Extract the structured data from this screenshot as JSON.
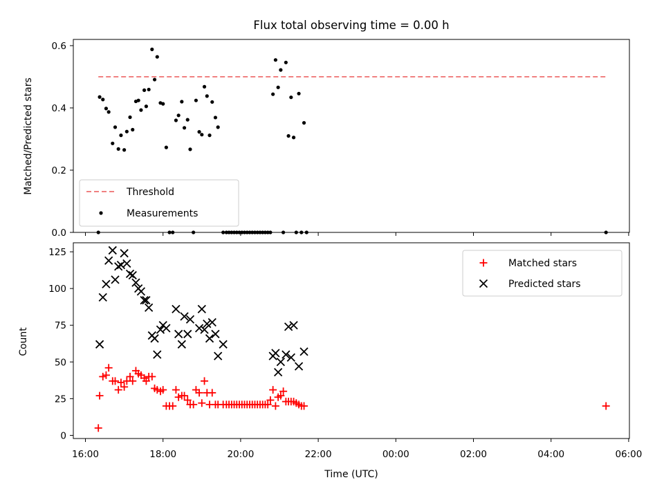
{
  "chart_data": [
    {
      "type": "scatter",
      "title": "Flux total observing time = 0.00 h",
      "ylabel": "Matched/Predicted stars",
      "ylim": [
        0,
        0.62
      ],
      "yticks": [
        0.0,
        0.2,
        0.4,
        0.6
      ],
      "ytick_labels": [
        "0.0",
        "0.2",
        "0.4",
        "0.6"
      ],
      "xlim": [
        "16:00",
        "06:00"
      ],
      "grid": false,
      "legend_position": "bottom-left",
      "threshold": {
        "name": "Threshold",
        "value": 0.5,
        "color": "#f08080",
        "x_start": "16:20",
        "x_end": "05:25"
      },
      "series": [
        {
          "name": "Measurements",
          "color": "#000000",
          "marker": "dot",
          "points": [
            [
              "16:20",
              0.0
            ],
            [
              "16:22",
              0.435
            ],
            [
              "16:27",
              0.427
            ],
            [
              "16:32",
              0.398
            ],
            [
              "16:36",
              0.387
            ],
            [
              "16:42",
              0.286
            ],
            [
              "16:46",
              0.338
            ],
            [
              "16:51",
              0.268
            ],
            [
              "16:55",
              0.312
            ],
            [
              "17:00",
              0.265
            ],
            [
              "17:04",
              0.324
            ],
            [
              "17:09",
              0.37
            ],
            [
              "17:13",
              0.33
            ],
            [
              "17:18",
              0.421
            ],
            [
              "17:22",
              0.424
            ],
            [
              "17:26",
              0.393
            ],
            [
              "17:31",
              0.457
            ],
            [
              "17:34",
              0.405
            ],
            [
              "17:38",
              0.459
            ],
            [
              "17:43",
              0.588
            ],
            [
              "17:47",
              0.491
            ],
            [
              "17:51",
              0.564
            ],
            [
              "17:56",
              0.416
            ],
            [
              "18:00",
              0.413
            ],
            [
              "18:05",
              0.273
            ],
            [
              "18:10",
              0.0
            ],
            [
              "18:15",
              0.0
            ],
            [
              "18:20",
              0.36
            ],
            [
              "18:24",
              0.376
            ],
            [
              "18:29",
              0.42
            ],
            [
              "18:33",
              0.336
            ],
            [
              "18:38",
              0.362
            ],
            [
              "18:42",
              0.267
            ],
            [
              "18:47",
              0.0
            ],
            [
              "18:51",
              0.424
            ],
            [
              "18:56",
              0.323
            ],
            [
              "19:00",
              0.314
            ],
            [
              "19:04",
              0.468
            ],
            [
              "19:08",
              0.438
            ],
            [
              "19:12",
              0.312
            ],
            [
              "19:16",
              0.419
            ],
            [
              "19:21",
              0.369
            ],
            [
              "19:25",
              0.338
            ],
            [
              "19:33",
              0.0
            ],
            [
              "19:38",
              0.0
            ],
            [
              "19:42",
              0.0
            ],
            [
              "19:46",
              0.0
            ],
            [
              "19:50",
              0.0
            ],
            [
              "19:54",
              0.0
            ],
            [
              "19:58",
              0.0
            ],
            [
              "20:02",
              0.0
            ],
            [
              "20:06",
              0.0
            ],
            [
              "20:10",
              0.0
            ],
            [
              "20:14",
              0.0
            ],
            [
              "20:18",
              0.0
            ],
            [
              "20:22",
              0.0
            ],
            [
              "20:26",
              0.0
            ],
            [
              "20:30",
              0.0
            ],
            [
              "20:34",
              0.0
            ],
            [
              "20:38",
              0.0
            ],
            [
              "20:42",
              0.0
            ],
            [
              "20:46",
              0.0
            ],
            [
              "20:50",
              0.444
            ],
            [
              "20:54",
              0.554
            ],
            [
              "20:58",
              0.466
            ],
            [
              "21:02",
              0.522
            ],
            [
              "21:06",
              0.0
            ],
            [
              "21:10",
              0.546
            ],
            [
              "21:14",
              0.31
            ],
            [
              "21:18",
              0.434
            ],
            [
              "21:22",
              0.305
            ],
            [
              "21:26",
              0.0
            ],
            [
              "21:30",
              0.446
            ],
            [
              "21:34",
              0.0
            ],
            [
              "21:38",
              0.352
            ],
            [
              "21:42",
              0.0
            ],
            [
              "05:25",
              0.0
            ]
          ]
        }
      ]
    },
    {
      "type": "scatter",
      "xlabel": "Time (UTC)",
      "ylabel": "Count",
      "ylim": [
        0,
        130
      ],
      "yticks": [
        0,
        25,
        50,
        75,
        100,
        125
      ],
      "ytick_labels": [
        "0",
        "25",
        "50",
        "75",
        "100",
        "125"
      ],
      "xlim": [
        "16:00",
        "06:00"
      ],
      "xtick_labels": [
        "16:00",
        "18:00",
        "20:00",
        "22:00",
        "00:00",
        "02:00",
        "04:00",
        "06:00"
      ],
      "grid": false,
      "legend_position": "top-right",
      "series": [
        {
          "name": "Matched stars",
          "color": "#ff0000",
          "marker": "plus",
          "points": [
            [
              "16:20",
              5
            ],
            [
              "16:22",
              27
            ],
            [
              "16:27",
              40
            ],
            [
              "16:32",
              41
            ],
            [
              "16:36",
              46
            ],
            [
              "16:42",
              37
            ],
            [
              "16:46",
              37
            ],
            [
              "16:51",
              31
            ],
            [
              "16:55",
              36
            ],
            [
              "17:00",
              33
            ],
            [
              "17:04",
              37
            ],
            [
              "17:09",
              40
            ],
            [
              "17:13",
              37
            ],
            [
              "17:18",
              44
            ],
            [
              "17:22",
              42
            ],
            [
              "17:26",
              41
            ],
            [
              "17:31",
              39
            ],
            [
              "17:34",
              37
            ],
            [
              "17:38",
              40
            ],
            [
              "17:43",
              40
            ],
            [
              "17:47",
              32
            ],
            [
              "17:51",
              31
            ],
            [
              "17:56",
              30
            ],
            [
              "18:00",
              31
            ],
            [
              "18:05",
              20
            ],
            [
              "18:10",
              20
            ],
            [
              "18:15",
              20
            ],
            [
              "18:20",
              31
            ],
            [
              "18:24",
              26
            ],
            [
              "18:29",
              27
            ],
            [
              "18:33",
              27
            ],
            [
              "18:38",
              24
            ],
            [
              "18:42",
              21
            ],
            [
              "18:47",
              21
            ],
            [
              "18:51",
              31
            ],
            [
              "18:56",
              29
            ],
            [
              "19:00",
              22
            ],
            [
              "19:04",
              37
            ],
            [
              "19:08",
              29
            ],
            [
              "19:12",
              21
            ],
            [
              "19:16",
              29
            ],
            [
              "19:21",
              21
            ],
            [
              "19:25",
              21
            ],
            [
              "19:33",
              21
            ],
            [
              "19:38",
              21
            ],
            [
              "19:42",
              21
            ],
            [
              "19:46",
              21
            ],
            [
              "19:50",
              21
            ],
            [
              "19:54",
              21
            ],
            [
              "19:58",
              21
            ],
            [
              "20:02",
              21
            ],
            [
              "20:06",
              21
            ],
            [
              "20:10",
              21
            ],
            [
              "20:14",
              21
            ],
            [
              "20:18",
              21
            ],
            [
              "20:22",
              21
            ],
            [
              "20:26",
              21
            ],
            [
              "20:30",
              21
            ],
            [
              "20:34",
              21
            ],
            [
              "20:38",
              21
            ],
            [
              "20:42",
              21
            ],
            [
              "20:46",
              24
            ],
            [
              "20:50",
              31
            ],
            [
              "20:54",
              20
            ],
            [
              "20:58",
              26
            ],
            [
              "21:02",
              27
            ],
            [
              "21:06",
              30
            ],
            [
              "21:10",
              23
            ],
            [
              "21:14",
              23
            ],
            [
              "21:18",
              23
            ],
            [
              "21:22",
              23
            ],
            [
              "21:26",
              22
            ],
            [
              "21:30",
              21
            ],
            [
              "21:34",
              20
            ],
            [
              "21:38",
              20
            ],
            [
              "05:25",
              20
            ]
          ]
        },
        {
          "name": "Predicted stars",
          "color": "#000000",
          "marker": "x",
          "points": [
            [
              "16:22",
              62
            ],
            [
              "16:27",
              94
            ],
            [
              "16:32",
              103
            ],
            [
              "16:36",
              119
            ],
            [
              "16:42",
              126
            ],
            [
              "16:46",
              106
            ],
            [
              "16:51",
              115
            ],
            [
              "16:55",
              116
            ],
            [
              "17:00",
              124
            ],
            [
              "17:04",
              117
            ],
            [
              "17:09",
              110
            ],
            [
              "17:13",
              109
            ],
            [
              "17:18",
              104
            ],
            [
              "17:22",
              100
            ],
            [
              "17:26",
              98
            ],
            [
              "17:31",
              92
            ],
            [
              "17:34",
              92
            ],
            [
              "17:38",
              87
            ],
            [
              "17:43",
              68
            ],
            [
              "17:47",
              66
            ],
            [
              "17:51",
              55
            ],
            [
              "17:56",
              72
            ],
            [
              "18:00",
              75
            ],
            [
              "18:05",
              73
            ],
            [
              "18:20",
              86
            ],
            [
              "18:24",
              69
            ],
            [
              "18:29",
              62
            ],
            [
              "18:33",
              81
            ],
            [
              "18:38",
              69
            ],
            [
              "18:42",
              79
            ],
            [
              "18:56",
              73
            ],
            [
              "19:00",
              86
            ],
            [
              "19:04",
              72
            ],
            [
              "19:08",
              76
            ],
            [
              "19:12",
              66
            ],
            [
              "19:16",
              77
            ],
            [
              "19:21",
              69
            ],
            [
              "19:25",
              54
            ],
            [
              "19:33",
              62
            ],
            [
              "20:50",
              54
            ],
            [
              "20:54",
              56
            ],
            [
              "20:58",
              43
            ],
            [
              "21:02",
              50
            ],
            [
              "21:10",
              55
            ],
            [
              "21:14",
              74
            ],
            [
              "21:18",
              53
            ],
            [
              "21:22",
              75
            ],
            [
              "21:30",
              47
            ],
            [
              "21:38",
              57
            ]
          ]
        }
      ]
    }
  ]
}
